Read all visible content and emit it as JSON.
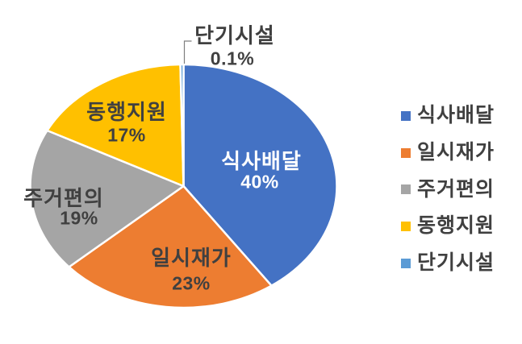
{
  "chart_data": {
    "type": "pie",
    "title": "",
    "categories": [
      "식사배달",
      "일시재가",
      "주거편의",
      "동행지원",
      "단기시설"
    ],
    "values": [
      40,
      23,
      19,
      17,
      0.1
    ],
    "value_labels": [
      "40%",
      "23%",
      "19%",
      "17%",
      "0.1%"
    ],
    "colors": [
      "#4472C4",
      "#ED7D31",
      "#A5A5A5",
      "#FFC000",
      "#5B9BD5"
    ],
    "label_text_colors": [
      "#FFFFFF",
      "#404040",
      "#404040",
      "#404040",
      "#404040"
    ],
    "start_angle_deg": 0,
    "direction": "clockwise",
    "legend_position": "right",
    "background": "#FFFFFF",
    "slice_border_color": "#FFFFFF",
    "leader_line_color": "#7F7F7F"
  }
}
